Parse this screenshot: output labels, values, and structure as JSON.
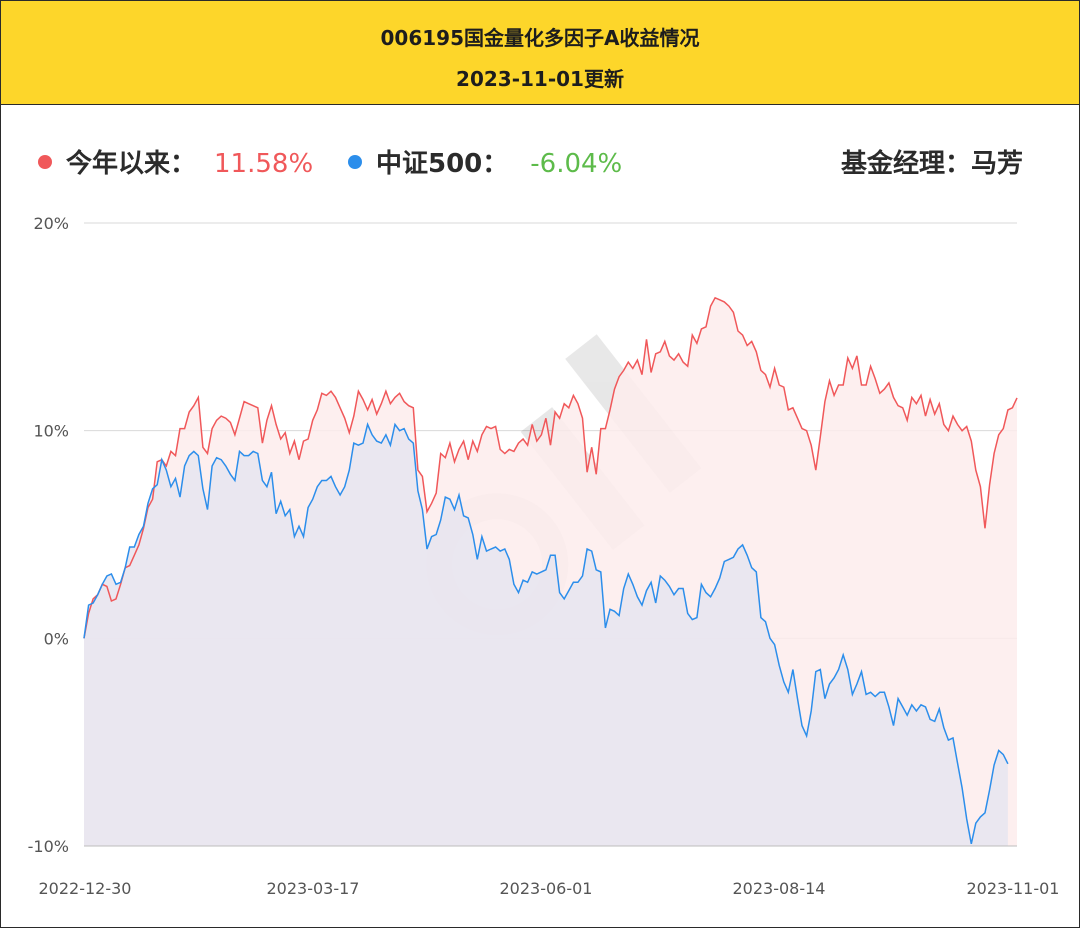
{
  "header": {
    "title": "006195国金量化多因子A收益情况",
    "subtitle": "2023-11-01更新"
  },
  "legend": {
    "fund_label": "今年以来：",
    "fund_value": "11.58%",
    "index_label": "中证500：",
    "index_value": "-6.04%",
    "manager": "基金经理：马芳"
  },
  "colors": {
    "header_bg": "#FDD62A",
    "fund_line": "#F0585A",
    "fund_fill": "#FDECEC",
    "index_line": "#2C8EEB",
    "index_fill": "#E8E6F0",
    "index_value_text": "#5DBB4A",
    "grid": "#D9D9D9"
  },
  "chart_data": {
    "type": "area",
    "title": "006195国金量化多因子A收益情况",
    "xlabel": "",
    "ylabel": "",
    "ylim": [
      -10,
      20
    ],
    "yticks": [
      "20%",
      "10%",
      "0%",
      "-10%"
    ],
    "xticks": [
      "2022-12-30",
      "2023-03-17",
      "2023-06-01",
      "2023-08-14",
      "2023-11-01"
    ],
    "x_start": "2022-12-30",
    "x_end": "2023-11-01",
    "grid": true,
    "series": [
      {
        "name": "今年以来",
        "color": "#F0585A",
        "values": [
          0.0,
          1.2,
          1.9,
          2.1,
          2.6,
          2.5,
          1.8,
          1.9,
          2.6,
          3.4,
          3.5,
          4.0,
          4.5,
          5.3,
          6.3,
          6.7,
          8.5,
          8.6,
          8.3,
          9.0,
          8.8,
          10.1,
          10.1,
          10.9,
          11.2,
          11.6,
          9.2,
          8.9,
          10.1,
          10.5,
          10.7,
          10.6,
          10.4,
          9.8,
          10.6,
          11.4,
          11.3,
          11.2,
          11.1,
          9.4,
          10.5,
          11.2,
          10.3,
          9.6,
          9.9,
          8.9,
          9.5,
          8.6,
          9.5,
          9.6,
          10.5,
          11.0,
          11.8,
          11.7,
          11.9,
          11.6,
          11.1,
          10.6,
          9.9,
          10.7,
          11.9,
          11.5,
          11.0,
          11.5,
          10.8,
          11.3,
          11.9,
          11.3,
          11.6,
          11.8,
          11.4,
          11.2,
          11.1,
          8.1,
          7.8,
          6.1,
          6.5,
          7.0,
          8.9,
          8.7,
          9.4,
          8.5,
          9.1,
          9.5,
          8.6,
          9.5,
          9.0,
          9.8,
          10.2,
          10.1,
          10.2,
          9.1,
          8.9,
          9.1,
          9.0,
          9.4,
          9.6,
          9.3,
          10.3,
          9.5,
          9.8,
          10.6,
          9.3,
          10.9,
          10.6,
          11.3,
          11.1,
          11.7,
          11.3,
          10.6,
          8.0,
          9.2,
          7.9,
          10.1,
          10.1,
          11.0,
          12.0,
          12.6,
          12.9,
          13.3,
          13.0,
          13.4,
          12.7,
          14.4,
          12.8,
          13.7,
          13.8,
          14.3,
          13.6,
          13.4,
          13.7,
          13.3,
          13.1,
          14.6,
          14.2,
          14.9,
          15.0,
          16.0,
          16.4,
          16.3,
          16.2,
          16.0,
          15.7,
          14.8,
          14.6,
          14.1,
          14.3,
          13.8,
          12.9,
          12.7,
          12.1,
          13.0,
          12.2,
          12.1,
          11.0,
          11.1,
          10.6,
          10.1,
          10.0,
          9.3,
          8.1,
          9.7,
          11.4,
          12.4,
          11.7,
          12.2,
          12.2,
          13.5,
          13.0,
          13.6,
          12.2,
          12.2,
          13.1,
          12.5,
          11.8,
          12.0,
          12.3,
          11.6,
          11.2,
          11.1,
          10.5,
          11.6,
          11.3,
          11.7,
          10.7,
          11.5,
          10.8,
          11.3,
          10.3,
          10.0,
          10.7,
          10.3,
          10.0,
          10.2,
          9.5,
          8.1,
          7.3,
          5.3,
          7.4,
          8.9,
          9.8,
          10.1,
          11.0,
          11.1,
          11.58
        ]
      },
      {
        "name": "中证500",
        "color": "#2C8EEB",
        "values": [
          0.0,
          1.6,
          1.7,
          2.1,
          2.6,
          3.0,
          3.1,
          2.6,
          2.7,
          3.4,
          4.4,
          4.4,
          5.0,
          5.4,
          6.5,
          7.2,
          7.4,
          8.6,
          8.1,
          7.3,
          7.7,
          6.8,
          8.3,
          8.8,
          9.0,
          8.8,
          7.2,
          6.2,
          8.3,
          8.7,
          8.6,
          8.3,
          7.9,
          7.6,
          9.0,
          8.8,
          8.8,
          9.0,
          8.9,
          7.6,
          7.3,
          8.0,
          6.0,
          6.6,
          5.9,
          6.2,
          4.9,
          5.4,
          4.9,
          6.3,
          6.7,
          7.3,
          7.6,
          7.6,
          7.8,
          7.3,
          6.9,
          7.3,
          8.1,
          9.4,
          9.3,
          9.4,
          10.3,
          9.8,
          9.5,
          9.4,
          9.8,
          9.3,
          10.3,
          10.0,
          10.1,
          9.6,
          9.4,
          7.1,
          6.2,
          4.3,
          4.9,
          5.0,
          5.7,
          6.8,
          6.7,
          6.2,
          6.9,
          5.9,
          5.8,
          5.0,
          3.8,
          4.9,
          4.2,
          4.3,
          4.4,
          4.2,
          4.3,
          3.8,
          2.6,
          2.2,
          2.8,
          2.7,
          3.2,
          3.1,
          3.2,
          3.3,
          4.0,
          4.0,
          2.2,
          1.9,
          2.3,
          2.7,
          2.7,
          3.0,
          4.3,
          4.2,
          3.3,
          3.2,
          0.5,
          1.4,
          1.3,
          1.1,
          2.4,
          3.1,
          2.6,
          2.0,
          1.6,
          2.3,
          2.7,
          1.7,
          3.0,
          2.8,
          2.5,
          2.1,
          2.4,
          2.4,
          1.2,
          0.9,
          1.0,
          2.6,
          2.2,
          2.0,
          2.4,
          2.9,
          3.7,
          3.8,
          3.9,
          4.3,
          4.5,
          4.0,
          3.4,
          3.2,
          1.0,
          0.8,
          0.0,
          -0.3,
          -1.3,
          -2.1,
          -2.6,
          -1.5,
          -2.9,
          -4.2,
          -4.7,
          -3.5,
          -1.6,
          -1.5,
          -2.9,
          -2.2,
          -1.9,
          -1.5,
          -0.8,
          -1.5,
          -2.7,
          -2.2,
          -1.6,
          -2.7,
          -2.6,
          -2.8,
          -2.6,
          -2.6,
          -3.3,
          -4.2,
          -2.9,
          -3.3,
          -3.7,
          -3.2,
          -3.5,
          -3.2,
          -3.3,
          -3.9,
          -4.0,
          -3.4,
          -4.3,
          -4.9,
          -4.8,
          -6.0,
          -7.2,
          -8.7,
          -9.9,
          -8.9,
          -8.6,
          -8.4,
          -7.3,
          -6.1,
          -5.4,
          -5.6,
          -6.04
        ]
      }
    ]
  }
}
